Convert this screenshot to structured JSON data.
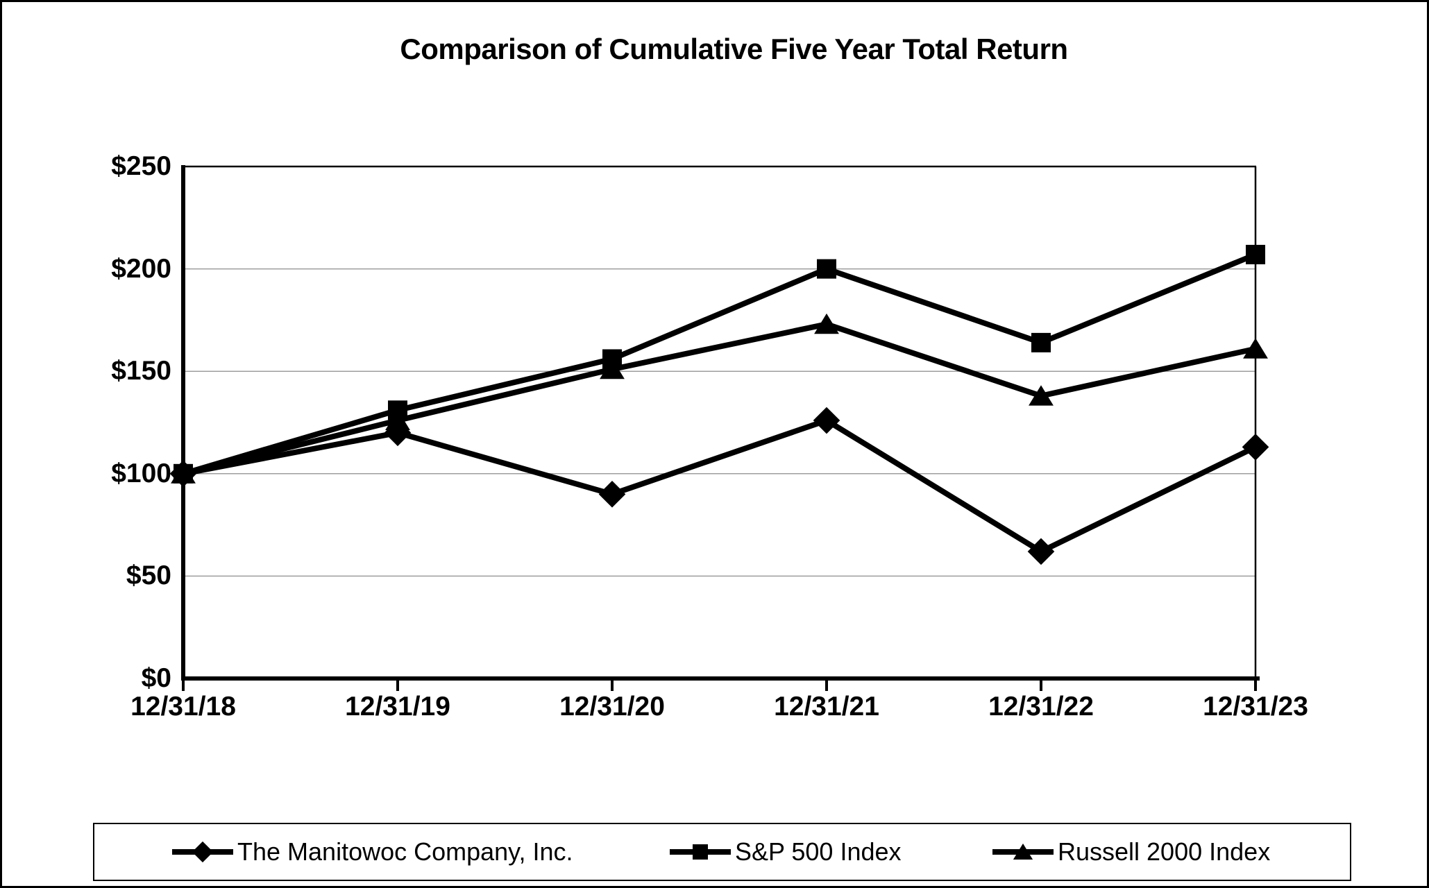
{
  "title": "Comparison of Cumulative Five Year Total Return",
  "chart_data": {
    "type": "line",
    "title": "Comparison of Cumulative Five Year Total Return",
    "categories": [
      "12/31/18",
      "12/31/19",
      "12/31/20",
      "12/31/21",
      "12/31/22",
      "12/31/23"
    ],
    "series": [
      {
        "name": "The Manitowoc Company, Inc.",
        "marker": "diamond",
        "z": 1,
        "values": [
          100,
          120,
          90,
          126,
          62,
          113
        ]
      },
      {
        "name": "S&P 500 Index",
        "marker": "square",
        "z": 3,
        "values": [
          100,
          131,
          156,
          200,
          164,
          207
        ]
      },
      {
        "name": "Russell 2000 Index",
        "marker": "triangle",
        "z": 2,
        "values": [
          100,
          126,
          151,
          173,
          138,
          161
        ]
      }
    ],
    "xlabel": "",
    "ylabel": "",
    "ylim": [
      0,
      250
    ],
    "y_tick_step": 50,
    "y_tick_labels": [
      "$0",
      "$50",
      "$100",
      "$150",
      "$200",
      "$250"
    ],
    "grid": "horizontal-gridlines",
    "legend_position": "bottom-boxed",
    "series_color": "#000000",
    "gridline_color": "#9d9d9d",
    "axis_color": "#000000",
    "background_color": "#ffffff"
  }
}
